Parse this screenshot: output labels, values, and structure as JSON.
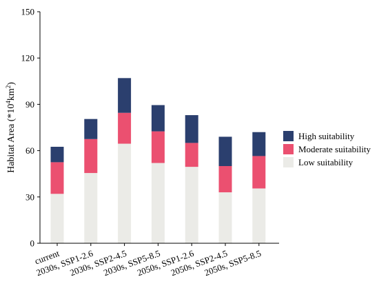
{
  "chart_data": {
    "type": "bar",
    "stacked": true,
    "title": "",
    "xlabel": "",
    "ylabel": {
      "text": "Habitat Area (*10",
      "sup1": "4",
      "mid": "km",
      "sup2": "2",
      "end": ")"
    },
    "ylim": [
      0,
      150
    ],
    "yticks": [
      0,
      30,
      60,
      90,
      120,
      150
    ],
    "grid": false,
    "legend_position": "right",
    "categories": [
      "current",
      "2030s, SSP1-2.6",
      "2030s, SSP2-4.5",
      "2030s, SSP5-8.5",
      "2050s, SSP1-2.6",
      "2050s, SSP2-4.5",
      "2050s, SSP5-8.5"
    ],
    "series": [
      {
        "name": "Low suitability",
        "color": "#ebebe7",
        "values": [
          32,
          45.5,
          64.5,
          52,
          49.5,
          33,
          35.5
        ]
      },
      {
        "name": "Moderate suitability",
        "color": "#eb5070",
        "values": [
          20.5,
          22,
          20,
          20.5,
          15.5,
          17,
          21
        ]
      },
      {
        "name": "High suitability",
        "color": "#2b3f6e",
        "values": [
          10,
          13,
          22.5,
          17,
          18,
          19,
          15.5
        ]
      }
    ],
    "legend_order": [
      "High suitability",
      "Moderate suitability",
      "Low suitability"
    ]
  }
}
